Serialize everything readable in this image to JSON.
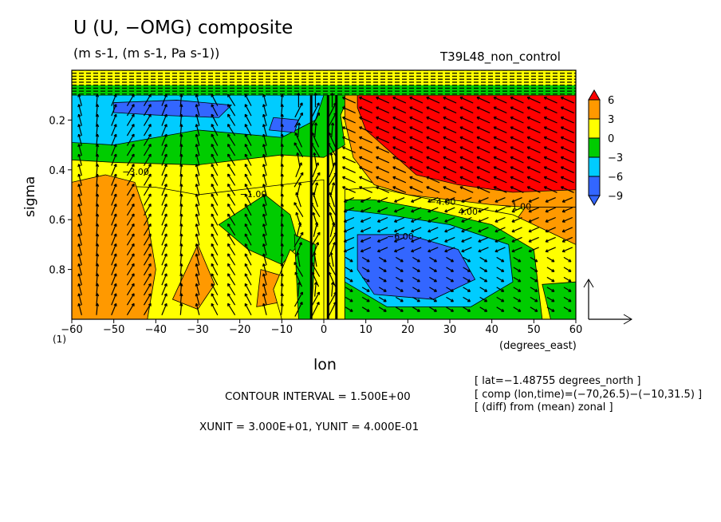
{
  "title": "U (U, −OMG) composite",
  "units": "(m s-1, (m s-1, Pa s-1))",
  "experiment": "T39L48_non_control",
  "footer": {
    "contour_interval": "CONTOUR INTERVAL = 1.500E+00",
    "units_line": "XUNIT = 3.000E+01, YUNIT = 4.000E-01"
  },
  "info_lines": [
    "[ lat=−1.48755 degrees_north ]",
    "[ comp (lon,time)=(−70,26.5)−(−10,31.5) ]",
    "[ (diff) from (mean) zonal ]"
  ],
  "colorbar": {
    "labels": [
      "6",
      "3",
      "0",
      "−3",
      "−6",
      "−9"
    ],
    "colors": [
      "#ff0000",
      "#ff9900",
      "#ffff00",
      "#00cc00",
      "#00ccff",
      "#3366ff"
    ]
  },
  "contour_labels": [
    "−3.00",
    "−1.00",
    "−4.00",
    "−6.00",
    "4.00",
    "−1.00"
  ],
  "chart_data": {
    "type": "heatmap",
    "title": "U (U, −OMG) composite",
    "xlabel": "lon",
    "xunits": "(degrees_east)",
    "ylabel": "sigma",
    "ybottom_label": "(1)",
    "xlim": [
      -60,
      60
    ],
    "ylim": [
      1.0,
      0.0
    ],
    "x_ticks": [
      -60,
      -50,
      -40,
      -30,
      -20,
      -10,
      0,
      10,
      20,
      30,
      40,
      50,
      60
    ],
    "x_tick_labels": [
      "−60",
      "−50",
      "−40",
      "−30",
      "−20",
      "−10",
      "0",
      "10",
      "20",
      "30",
      "40",
      "50",
      "60"
    ],
    "y_ticks": [
      0.2,
      0.4,
      0.6,
      0.8
    ],
    "y_tick_labels": [
      "0.2",
      "0.4",
      "0.6",
      "0.8"
    ],
    "levels": [
      -9,
      -6,
      -3,
      0,
      3,
      6
    ],
    "contour_interval": 1.5,
    "vector_units": {
      "x": 30,
      "y": 0.4
    },
    "regions": [
      {
        "level": 6,
        "lon_range": [
          4,
          60
        ],
        "sigma_range": [
          0.1,
          0.48
        ]
      },
      {
        "level": 3,
        "lon_range": [
          -60,
          -45
        ],
        "sigma_range": [
          0.4,
          1.0
        ]
      },
      {
        "level": 3,
        "lon_range": [
          45,
          60
        ],
        "sigma_range": [
          0.5,
          0.75
        ]
      },
      {
        "level": 0,
        "lon_range": [
          -45,
          0
        ],
        "sigma_range": [
          0.5,
          1.0
        ]
      },
      {
        "level": -3,
        "lon_range": [
          -60,
          5
        ],
        "sigma_range": [
          0.25,
          0.45
        ]
      },
      {
        "level": -6,
        "lon_range": [
          -60,
          -5
        ],
        "sigma_range": [
          0.1,
          0.3
        ]
      },
      {
        "level": -9,
        "lon_range": [
          -50,
          -20
        ],
        "sigma_range": [
          0.1,
          0.18
        ]
      },
      {
        "level": -9,
        "lon_range": [
          10,
          35
        ],
        "sigma_range": [
          0.62,
          0.95
        ]
      },
      {
        "level": -6,
        "lon_range": [
          5,
          45
        ],
        "sigma_range": [
          0.55,
          0.9
        ]
      }
    ]
  }
}
